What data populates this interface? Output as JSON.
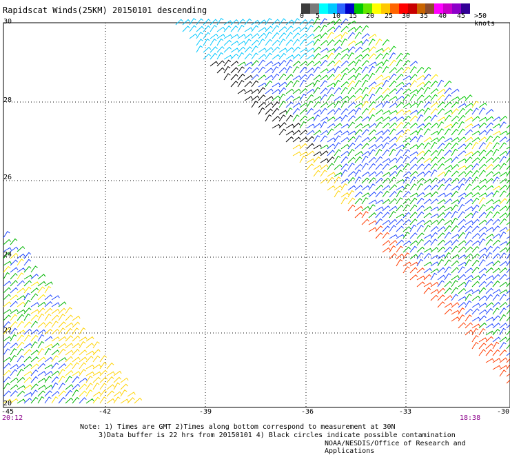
{
  "title": "Rapidscat Winds(25KM) 20150101 descending",
  "legend": {
    "colors": [
      "#3c3c3c",
      "#7a7a7a",
      "#00ffff",
      "#00c8ff",
      "#2d64ff",
      "#0000c8",
      "#00c800",
      "#64e600",
      "#ffff00",
      "#ffc800",
      "#ff6400",
      "#ff0000",
      "#c80000",
      "#c86400",
      "#8c4b2d",
      "#ff00ff",
      "#c800c8",
      "#8c00c8",
      "#320096"
    ],
    "labels": [
      "0",
      "5",
      "10",
      "15",
      "20",
      "25",
      "30",
      "35",
      "40",
      "45",
      ">50 knots"
    ]
  },
  "axes": {
    "y_labels": [
      "30",
      "28",
      "26",
      "24",
      "22",
      "20"
    ],
    "x_labels": [
      "-45",
      "-42",
      "-39",
      "-36",
      "-33",
      "-30"
    ]
  },
  "times": {
    "left": "20:12",
    "right": "18:38"
  },
  "notes": {
    "line1": "Note: 1) Times are GMT 2)Times along bottom correspond to measurement at 30N",
    "line2": "3)Data buffer is 22 hrs from 20150101 4) Black circles indicate possible contamination"
  },
  "credit": "NOAA/NESDIS/Office of Research and Applications"
}
